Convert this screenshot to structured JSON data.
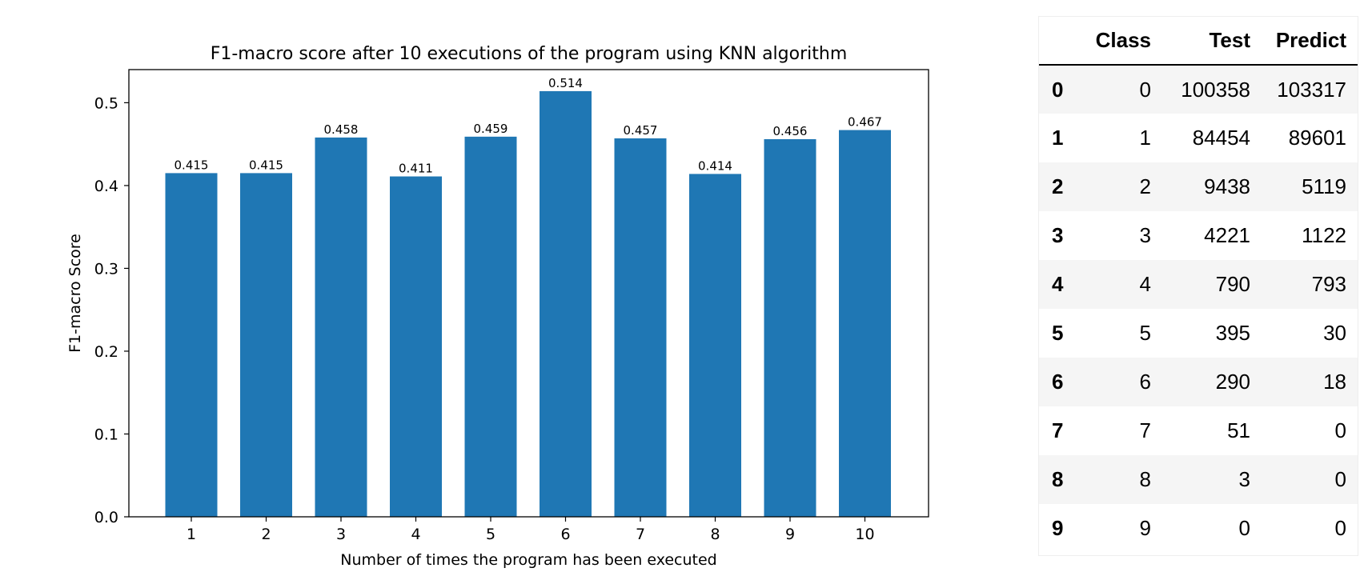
{
  "chart_data": {
    "type": "bar",
    "title": "F1-macro score after 10 executions of the program using KNN algorithm",
    "xlabel": "Number of times the program has been executed",
    "ylabel": "F1-macro Score",
    "categories": [
      "1",
      "2",
      "3",
      "4",
      "5",
      "6",
      "7",
      "8",
      "9",
      "10"
    ],
    "values": [
      0.415,
      0.415,
      0.458,
      0.411,
      0.459,
      0.514,
      0.457,
      0.414,
      0.456,
      0.467
    ],
    "value_labels": [
      "0.415",
      "0.415",
      "0.458",
      "0.411",
      "0.459",
      "0.514",
      "0.457",
      "0.414",
      "0.456",
      "0.467"
    ],
    "ylim": [
      0,
      0.54
    ],
    "yticks": [
      0.0,
      0.1,
      0.2,
      0.3,
      0.4,
      0.5
    ],
    "ytick_labels": [
      "0.0",
      "0.1",
      "0.2",
      "0.3",
      "0.4",
      "0.5"
    ],
    "bar_color": "#1f77b4",
    "grid": false
  },
  "table": {
    "headers": [
      "",
      "Class",
      "Test",
      "Predict"
    ],
    "rows": [
      {
        "index": "0",
        "class": "0",
        "test": "100358",
        "predict": "103317"
      },
      {
        "index": "1",
        "class": "1",
        "test": "84454",
        "predict": "89601"
      },
      {
        "index": "2",
        "class": "2",
        "test": "9438",
        "predict": "5119"
      },
      {
        "index": "3",
        "class": "3",
        "test": "4221",
        "predict": "1122"
      },
      {
        "index": "4",
        "class": "4",
        "test": "790",
        "predict": "793"
      },
      {
        "index": "5",
        "class": "5",
        "test": "395",
        "predict": "30"
      },
      {
        "index": "6",
        "class": "6",
        "test": "290",
        "predict": "18"
      },
      {
        "index": "7",
        "class": "7",
        "test": "51",
        "predict": "0"
      },
      {
        "index": "8",
        "class": "8",
        "test": "3",
        "predict": "0"
      },
      {
        "index": "9",
        "class": "9",
        "test": "0",
        "predict": "0"
      }
    ]
  }
}
